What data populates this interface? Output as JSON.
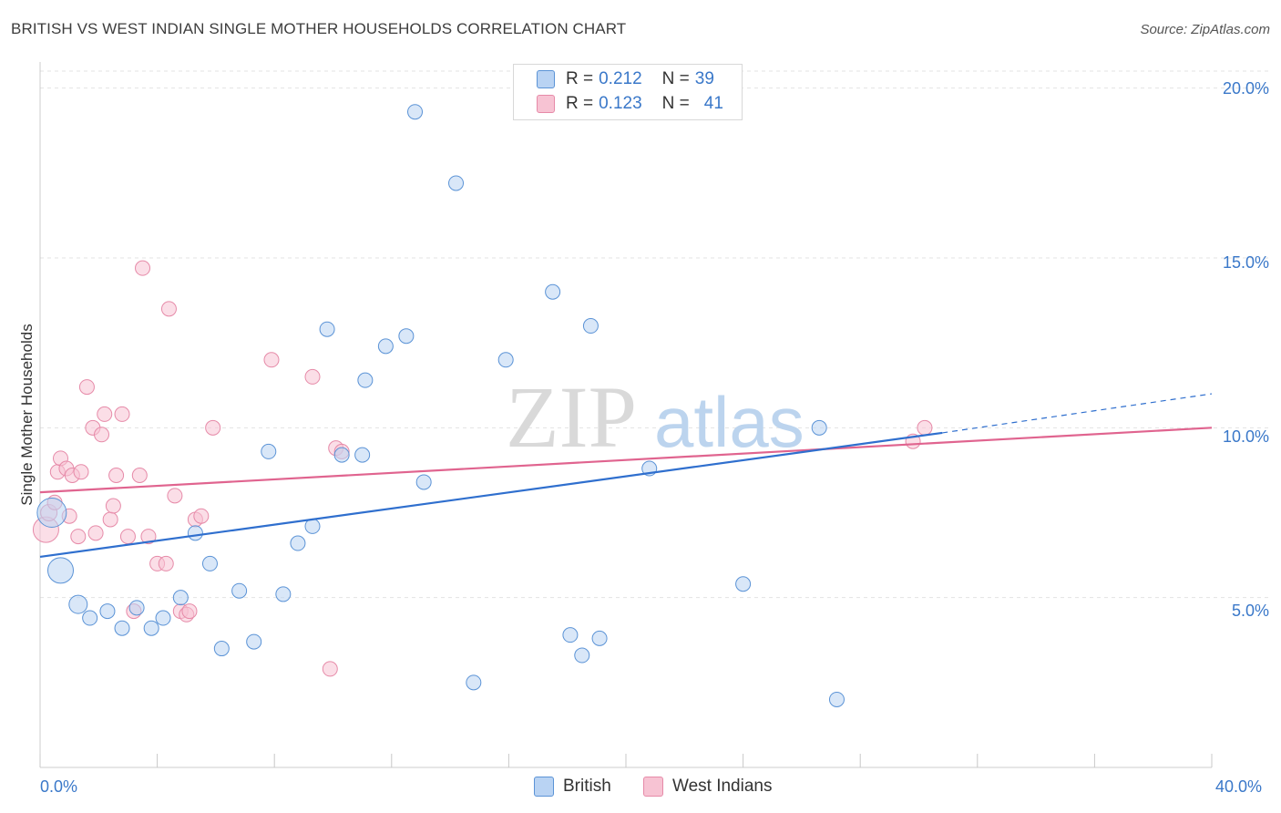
{
  "header": {
    "title": "BRITISH VS WEST INDIAN SINGLE MOTHER HOUSEHOLDS CORRELATION CHART",
    "source": "Source: ZipAtlas.com"
  },
  "watermark": {
    "zip": "ZIP",
    "atlas": "atlas"
  },
  "legend": {
    "british": {
      "r_label": "R =",
      "r_value": "0.212",
      "n_label": "N =",
      "n_value": "39"
    },
    "west_indians": {
      "r_label": "R =",
      "r_value": "0.123",
      "n_label": "N =",
      "n_value": "41"
    }
  },
  "bottom_legend": {
    "british": "British",
    "west_indians": "West Indians"
  },
  "colors": {
    "british_fill": "#b9d3f3",
    "british_stroke": "#5b93d6",
    "british_line": "#2f6fce",
    "west_fill": "#f7c3d3",
    "west_stroke": "#e68aa8",
    "west_line": "#e0648f",
    "axis_text": "#3a78c9",
    "grid": "#e3e3e3"
  },
  "chart_data": {
    "type": "scatter",
    "title": "BRITISH VS WEST INDIAN SINGLE MOTHER HOUSEHOLDS CORRELATION CHART",
    "xlabel": "",
    "ylabel": "Single Mother Households",
    "xlim": [
      0,
      40
    ],
    "ylim": [
      0,
      20.5
    ],
    "x_tick_labels": [
      "0.0%",
      "40.0%"
    ],
    "y_ticks": [
      5,
      10,
      15,
      20
    ],
    "y_tick_labels": [
      "5.0%",
      "10.0%",
      "15.0%",
      "20.0%"
    ],
    "series": [
      {
        "name": "British",
        "r": 0.212,
        "n": 39,
        "trend": {
          "x0": 0,
          "y0": 6.2,
          "x1": 30.8,
          "y1": 9.85,
          "dash_to_x": 40,
          "dash_to_y": 11.0
        },
        "points": [
          [
            0.4,
            7.5,
            16
          ],
          [
            0.7,
            5.8,
            14
          ],
          [
            1.3,
            4.8,
            10
          ],
          [
            1.7,
            4.4,
            8
          ],
          [
            2.3,
            4.6,
            8
          ],
          [
            2.8,
            4.1,
            8
          ],
          [
            3.3,
            4.7,
            8
          ],
          [
            3.8,
            4.1,
            8
          ],
          [
            4.2,
            4.4,
            8
          ],
          [
            4.8,
            5.0,
            8
          ],
          [
            5.3,
            6.9,
            8
          ],
          [
            5.8,
            6.0,
            8
          ],
          [
            6.2,
            3.5,
            8
          ],
          [
            6.8,
            5.2,
            8
          ],
          [
            7.3,
            3.7,
            8
          ],
          [
            7.8,
            9.3,
            8
          ],
          [
            8.3,
            5.1,
            8
          ],
          [
            8.8,
            6.6,
            8
          ],
          [
            9.3,
            7.1,
            8
          ],
          [
            9.8,
            12.9,
            8
          ],
          [
            10.3,
            9.2,
            8
          ],
          [
            11.0,
            9.2,
            8
          ],
          [
            11.1,
            11.4,
            8
          ],
          [
            11.8,
            12.4,
            8
          ],
          [
            12.5,
            12.7,
            8
          ],
          [
            12.8,
            19.3,
            8
          ],
          [
            13.1,
            8.4,
            8
          ],
          [
            14.2,
            17.2,
            8
          ],
          [
            14.8,
            2.5,
            8
          ],
          [
            15.9,
            12.0,
            8
          ],
          [
            17.5,
            14.0,
            8
          ],
          [
            18.1,
            3.9,
            8
          ],
          [
            18.5,
            3.3,
            8
          ],
          [
            18.8,
            13.0,
            8
          ],
          [
            19.1,
            3.8,
            8
          ],
          [
            20.8,
            8.8,
            8
          ],
          [
            24.0,
            5.4,
            8
          ],
          [
            26.6,
            10.0,
            8
          ],
          [
            27.2,
            2.0,
            8
          ]
        ]
      },
      {
        "name": "West Indians",
        "r": 0.123,
        "n": 41,
        "trend": {
          "x0": 0,
          "y0": 8.1,
          "x1": 40,
          "y1": 10.0
        },
        "points": [
          [
            0.2,
            7.0,
            14
          ],
          [
            0.3,
            7.5,
            9
          ],
          [
            0.5,
            7.8,
            8
          ],
          [
            0.6,
            8.7,
            8
          ],
          [
            0.7,
            9.1,
            8
          ],
          [
            0.9,
            8.8,
            8
          ],
          [
            1.0,
            7.4,
            8
          ],
          [
            1.1,
            8.6,
            8
          ],
          [
            1.3,
            6.8,
            8
          ],
          [
            1.4,
            8.7,
            8
          ],
          [
            1.6,
            11.2,
            8
          ],
          [
            1.8,
            10.0,
            8
          ],
          [
            1.9,
            6.9,
            8
          ],
          [
            2.1,
            9.8,
            8
          ],
          [
            2.2,
            10.4,
            8
          ],
          [
            2.4,
            7.3,
            8
          ],
          [
            2.5,
            7.7,
            8
          ],
          [
            2.6,
            8.6,
            8
          ],
          [
            2.8,
            10.4,
            8
          ],
          [
            3.0,
            6.8,
            8
          ],
          [
            3.2,
            4.6,
            8
          ],
          [
            3.4,
            8.6,
            8
          ],
          [
            3.5,
            14.7,
            8
          ],
          [
            3.7,
            6.8,
            8
          ],
          [
            4.0,
            6.0,
            8
          ],
          [
            4.3,
            6.0,
            8
          ],
          [
            4.4,
            13.5,
            8
          ],
          [
            4.6,
            8.0,
            8
          ],
          [
            4.8,
            4.6,
            8
          ],
          [
            5.0,
            4.5,
            8
          ],
          [
            5.1,
            4.6,
            8
          ],
          [
            5.3,
            7.3,
            8
          ],
          [
            5.5,
            7.4,
            8
          ],
          [
            5.9,
            10.0,
            8
          ],
          [
            7.9,
            12.0,
            8
          ],
          [
            9.3,
            11.5,
            8
          ],
          [
            9.9,
            2.9,
            8
          ],
          [
            10.1,
            9.4,
            8
          ],
          [
            10.3,
            9.3,
            8
          ],
          [
            29.8,
            9.6,
            8
          ],
          [
            30.2,
            10.0,
            8
          ]
        ]
      }
    ]
  }
}
